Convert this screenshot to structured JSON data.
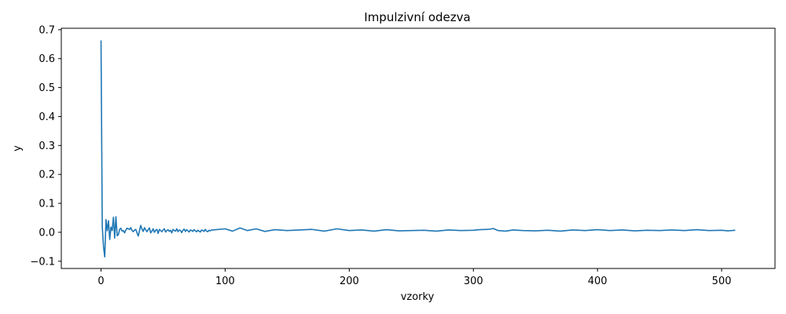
{
  "chart_data": {
    "type": "line",
    "title": "Impulzivní odezva",
    "xlabel": "vzorky",
    "ylabel": "y",
    "xlim": [
      -32,
      543
    ],
    "ylim": [
      -0.125,
      0.705
    ],
    "x_ticks": [
      0,
      100,
      200,
      300,
      400,
      500
    ],
    "y_ticks": [
      -0.1,
      0.0,
      0.1,
      0.2,
      0.3,
      0.4,
      0.5,
      0.6,
      0.7
    ],
    "y_tick_labels": [
      "−0.1",
      "0.0",
      "0.1",
      "0.2",
      "0.3",
      "0.4",
      "0.5",
      "0.6",
      "0.7"
    ],
    "grid": false,
    "legend": "none",
    "colors": {
      "line": "#1f77b4",
      "axes": "#000000",
      "background": "#ffffff"
    },
    "series": [
      {
        "x_start": 0,
        "x_step": 1,
        "values": [
          0.663,
          0.02,
          -0.05,
          -0.085,
          0.044,
          0.005,
          0.04,
          -0.025,
          0.018,
          0.006,
          0.052,
          -0.02,
          0.054,
          -0.012,
          -0.008,
          0.01,
          0.014,
          0.004,
          0.006,
          -0.002,
          0.008,
          0.014,
          0.012,
          0.01,
          0.016,
          0.006,
          0.002,
          0.008,
          0.01,
          -0.002,
          -0.013,
          0.006,
          0.024,
          0.011,
          0.003,
          0.016,
          0.008,
          0.002,
          0.009,
          0.015,
          -0.002,
          0.004,
          0.012,
          0.0,
          0.007,
          0.01,
          -0.004,
          0.01,
          0.006,
          0.002,
          0.008,
          0.012,
          0.001,
          0.006,
          0.009,
          0.003,
          0.007,
          -0.002,
          0.01,
          0.006,
          0.004,
          0.012,
          0.002,
          0.008,
          0.006,
          -0.001,
          0.007,
          0.011,
          0.003,
          0.009,
          0.005,
          0.001,
          0.008,
          0.006,
          0.003,
          0.009,
          0.005,
          0.002,
          0.007,
          0.004,
          0.001,
          0.008,
          0.006,
          0.003,
          0.01,
          0.004,
          0.002,
          0.007,
          0.005,
          0.008
        ],
        "tail_points": [
          [
            90,
            0.008
          ],
          [
            100,
            0.012
          ],
          [
            106,
            0.004
          ],
          [
            112,
            0.015
          ],
          [
            118,
            0.006
          ],
          [
            125,
            0.012
          ],
          [
            132,
            0.003
          ],
          [
            140,
            0.009
          ],
          [
            150,
            0.006
          ],
          [
            160,
            0.008
          ],
          [
            170,
            0.01
          ],
          [
            180,
            0.004
          ],
          [
            190,
            0.012
          ],
          [
            200,
            0.006
          ],
          [
            210,
            0.008
          ],
          [
            220,
            0.004
          ],
          [
            230,
            0.009
          ],
          [
            240,
            0.005
          ],
          [
            250,
            0.006
          ],
          [
            260,
            0.007
          ],
          [
            270,
            0.004
          ],
          [
            280,
            0.008
          ],
          [
            290,
            0.006
          ],
          [
            300,
            0.007
          ],
          [
            305,
            0.009
          ],
          [
            312,
            0.01
          ],
          [
            316,
            0.013
          ],
          [
            320,
            0.006
          ],
          [
            326,
            0.004
          ],
          [
            332,
            0.008
          ],
          [
            340,
            0.006
          ],
          [
            350,
            0.005
          ],
          [
            360,
            0.007
          ],
          [
            370,
            0.004
          ],
          [
            380,
            0.008
          ],
          [
            390,
            0.006
          ],
          [
            400,
            0.009
          ],
          [
            410,
            0.006
          ],
          [
            420,
            0.008
          ],
          [
            430,
            0.005
          ],
          [
            440,
            0.007
          ],
          [
            450,
            0.006
          ],
          [
            460,
            0.008
          ],
          [
            470,
            0.006
          ],
          [
            480,
            0.009
          ],
          [
            490,
            0.006
          ],
          [
            500,
            0.007
          ],
          [
            505,
            0.005
          ],
          [
            511,
            0.007
          ]
        ]
      }
    ]
  }
}
